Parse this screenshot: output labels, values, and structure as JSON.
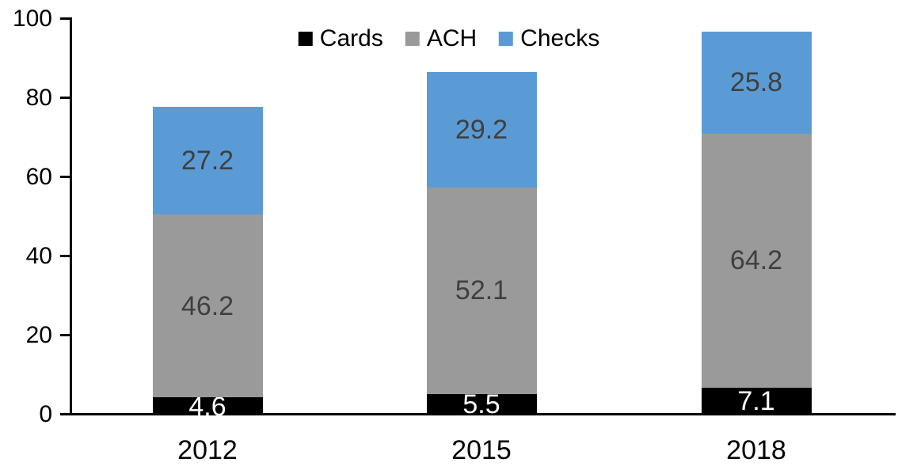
{
  "chart_data": {
    "type": "bar",
    "stacked": true,
    "title": "",
    "categories": [
      "2012",
      "2015",
      "2018"
    ],
    "series": [
      {
        "name": "Cards",
        "color": "#000000",
        "label_color": "#ffffff",
        "values": [
          4.6,
          5.5,
          7.1
        ]
      },
      {
        "name": "ACH",
        "color": "#9a9a9a",
        "label_color": "#3f3f3f",
        "values": [
          46.2,
          52.1,
          64.2
        ]
      },
      {
        "name": "Checks",
        "color": "#5b9bd5",
        "label_color": "#3f3f3f",
        "values": [
          27.2,
          29.2,
          25.8
        ]
      }
    ],
    "ylim": [
      0,
      100
    ],
    "yticks": [
      0,
      20,
      40,
      60,
      80,
      100
    ],
    "xlabel": "",
    "ylabel": "",
    "grid": false,
    "legend_position": "top-center",
    "axis_color": "#000000",
    "background": "#ffffff"
  }
}
